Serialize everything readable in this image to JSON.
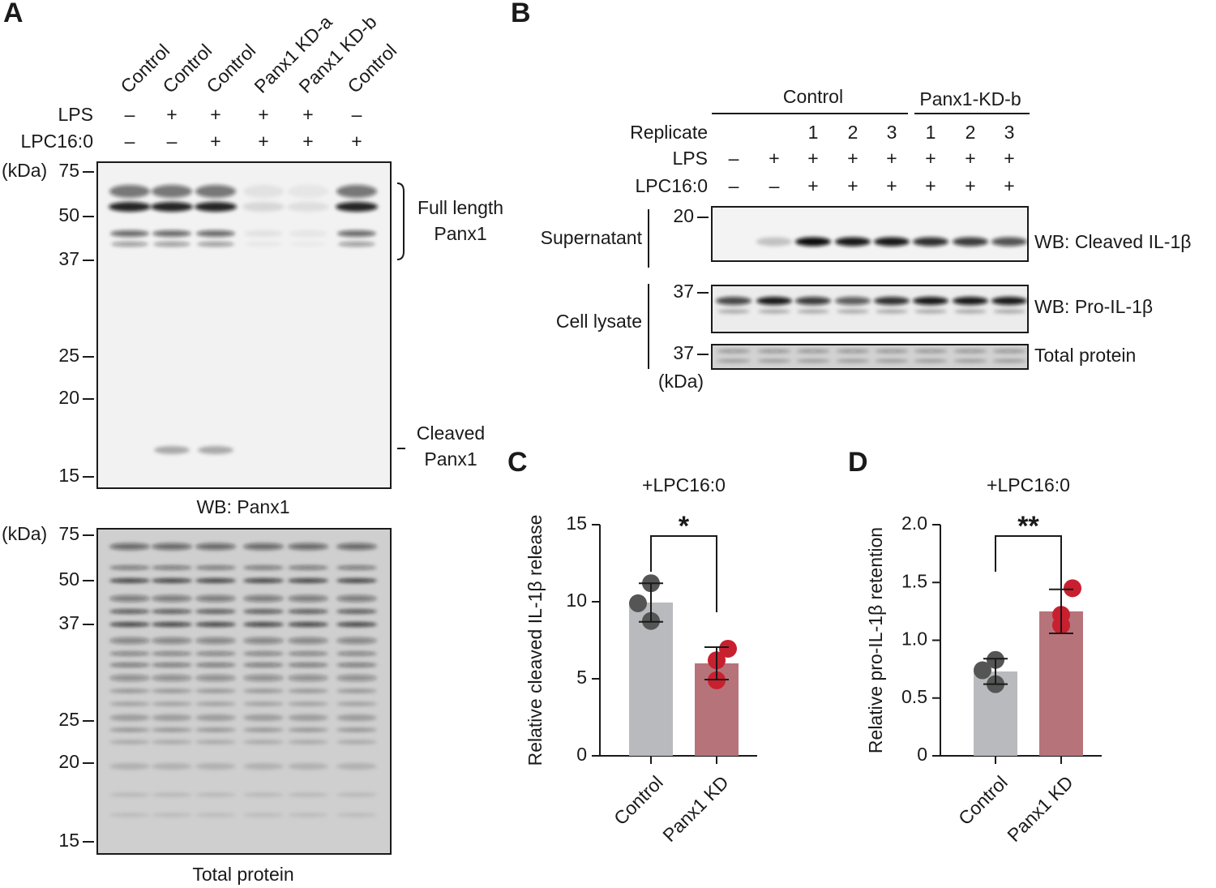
{
  "panel_a": {
    "label": "A",
    "lanes": [
      "Control",
      "Control",
      "Control",
      "Panx1 KD-a",
      "Panx1 KD-b",
      "Control"
    ],
    "rows": [
      {
        "name": "LPS",
        "signs": [
          "–",
          "+",
          "+",
          "+",
          "+",
          "–"
        ]
      },
      {
        "name": "LPC16:0",
        "signs": [
          "–",
          "–",
          "+",
          "+",
          "+",
          "+"
        ]
      }
    ],
    "kda_unit": "(kDa)",
    "markers": [
      75,
      50,
      37,
      25,
      20,
      15
    ],
    "full_length": [
      "Full length",
      "Panx1"
    ],
    "cleaved": [
      "Cleaved",
      "Panx1"
    ],
    "blot_caption": "WB: Panx1",
    "total_caption": "Total protein"
  },
  "panel_b": {
    "label": "B",
    "groups": [
      "Control",
      "Panx1-KD-b"
    ],
    "rows": [
      {
        "name": "Replicate",
        "values": [
          null,
          null,
          1,
          2,
          3,
          1,
          2,
          3
        ]
      },
      {
        "name": "LPS",
        "values": [
          "–",
          "+",
          "+",
          "+",
          "+",
          "+",
          "+",
          "+"
        ]
      },
      {
        "name": "LPC16:0",
        "values": [
          "–",
          "–",
          "+",
          "+",
          "+",
          "+",
          "+",
          "+"
        ]
      }
    ],
    "sections": [
      "Supernatant",
      "Cell lysate"
    ],
    "markers": [
      20,
      37,
      37
    ],
    "kda_unit": "(kDa)",
    "blots": [
      "WB: Cleaved IL-1β",
      "WB: Pro-IL-1β",
      "Total protein"
    ]
  },
  "chart_data": [
    {
      "type": "bar",
      "label": "C",
      "title": "+LPC16:0",
      "ylabel": "Relative cleaved IL-1β release",
      "categories": [
        "Control",
        "Panx1 KD"
      ],
      "values": [
        9.95,
        6.0
      ],
      "errors": [
        1.25,
        1.05
      ],
      "colors": [
        "#b9babe",
        "#b7737a"
      ],
      "points": [
        [
          11.2,
          9.9,
          8.75
        ],
        [
          6.95,
          6.2,
          4.9
        ]
      ],
      "point_colors": [
        "#555555",
        "#c8202f"
      ],
      "significance": "*",
      "ylim": [
        0,
        15
      ],
      "yticks": [
        0,
        5,
        10,
        15
      ]
    },
    {
      "type": "bar",
      "label": "D",
      "title": "+LPC16:0",
      "ylabel": "Relative pro-IL-1β retention",
      "categories": [
        "Control",
        "Panx1 KD"
      ],
      "values": [
        0.73,
        1.25
      ],
      "errors": [
        0.11,
        0.19
      ],
      "colors": [
        "#b9babe",
        "#b7737a"
      ],
      "points": [
        [
          0.83,
          0.74,
          0.62
        ],
        [
          1.45,
          1.22,
          1.13
        ]
      ],
      "point_colors": [
        "#555555",
        "#c8202f"
      ],
      "significance": "**",
      "ylim": [
        0,
        2
      ],
      "yticks": [
        0,
        0.5,
        {
          "value": 1,
          "label": "1.0"
        },
        1.5,
        {
          "value": 2,
          "label": "2.0"
        }
      ]
    }
  ]
}
